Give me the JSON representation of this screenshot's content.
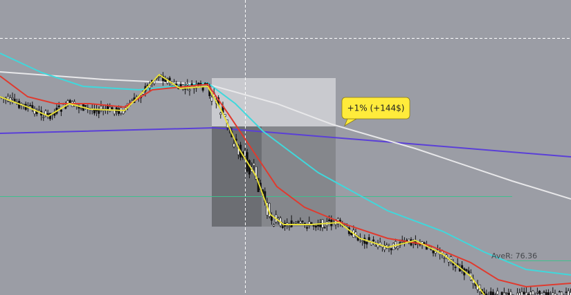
{
  "annotations": {
    "trade_label": "+1% (+144$)",
    "aver_label": "AveR: 76.36"
  }
}
